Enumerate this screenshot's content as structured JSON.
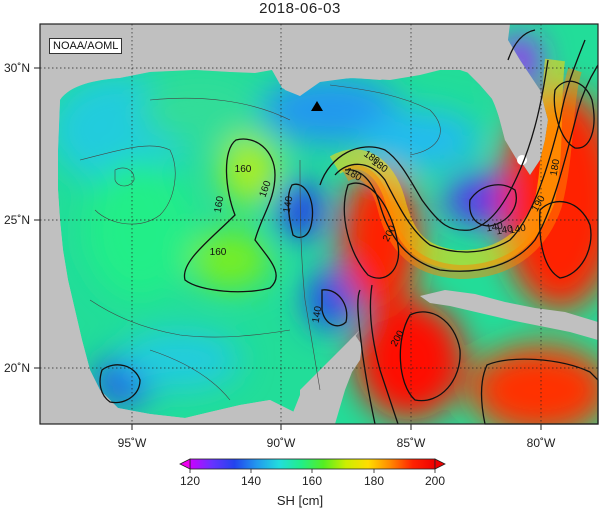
{
  "title": "2018-06-03",
  "credit": "NOAA/AOML",
  "colorbar": {
    "label": "SH [cm]",
    "ticks": [
      "120",
      "140",
      "160",
      "180",
      "200"
    ],
    "stops": [
      "#cc00ff",
      "#6633ff",
      "#2244ee",
      "#2299ee",
      "#22dddd",
      "#22ee88",
      "#55ee22",
      "#ccee00",
      "#ffdd00",
      "#ff8800",
      "#ff2200",
      "#ee0000"
    ]
  },
  "axes": {
    "x_ticks": [
      "95˚W",
      "90˚W",
      "85˚W",
      "80˚W"
    ],
    "y_ticks": [
      "30˚N",
      "25˚N",
      "20˚N"
    ]
  },
  "contour_labels": [
    "160",
    "160",
    "160",
    "160",
    "140",
    "140",
    "180",
    "180",
    "180",
    "200",
    "200",
    "140",
    "140",
    "140",
    "180",
    "190"
  ],
  "colors": {
    "land": "#c0c0c0",
    "marker": "#000000"
  }
}
